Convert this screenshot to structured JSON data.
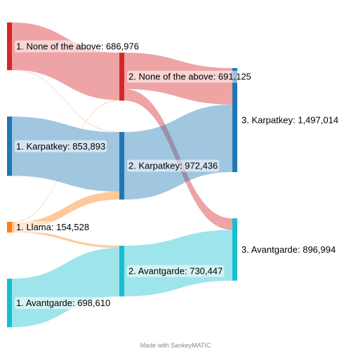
{
  "diagram": {
    "type": "sankey",
    "credit": "Made with SankeyMATIC",
    "nodes": [
      {
        "id": "n1_none",
        "stage": 1,
        "label": "1. None of the above: 686,976",
        "value": 686976,
        "color": "#d62728"
      },
      {
        "id": "n1_karp",
        "stage": 1,
        "label": "1. Karpatkey: 853,893",
        "value": 853893,
        "color": "#1f77b4"
      },
      {
        "id": "n1_llama",
        "stage": 1,
        "label": "1. Llama: 154,528",
        "value": 154528,
        "color": "#ff7f0e"
      },
      {
        "id": "n1_avant",
        "stage": 1,
        "label": "1. Avantgarde: 698,610",
        "value": 698610,
        "color": "#17becf"
      },
      {
        "id": "n2_none",
        "stage": 2,
        "label": "2. None of the above: 691,125",
        "value": 691125,
        "color": "#d62728"
      },
      {
        "id": "n2_karp",
        "stage": 2,
        "label": "2. Karpatkey: 972,436",
        "value": 972436,
        "color": "#1f77b4"
      },
      {
        "id": "n2_avant",
        "stage": 2,
        "label": "2. Avantgarde: 730,447",
        "value": 730447,
        "color": "#17becf"
      },
      {
        "id": "n3_karp",
        "stage": 3,
        "label": "3. Karpatkey: 1,497,014",
        "value": 1497014,
        "color": "#1f77b4"
      },
      {
        "id": "n3_avant",
        "stage": 3,
        "label": "3. Avantgarde: 896,994",
        "value": 896994,
        "color": "#17becf"
      }
    ],
    "flows": [
      {
        "from": "n1_none",
        "to": "n2_none",
        "value": 682000
      },
      {
        "from": "n1_none",
        "to": "n2_karp",
        "value": 4976
      },
      {
        "from": "n1_karp",
        "to": "n2_karp",
        "value": 853893
      },
      {
        "from": "n1_llama",
        "to": "n2_none",
        "value": 9125
      },
      {
        "from": "n1_llama",
        "to": "n2_karp",
        "value": 113567
      },
      {
        "from": "n1_llama",
        "to": "n2_avant",
        "value": 31836
      },
      {
        "from": "n1_avant",
        "to": "n2_avant",
        "value": 698610
      },
      {
        "from": "n2_none",
        "to": "n3_karp",
        "value": 524578
      },
      {
        "from": "n2_none",
        "to": "n3_avant",
        "value": 166547
      },
      {
        "from": "n2_karp",
        "to": "n3_karp",
        "value": 972436
      },
      {
        "from": "n2_avant",
        "to": "n3_avant",
        "value": 730447
      }
    ]
  }
}
